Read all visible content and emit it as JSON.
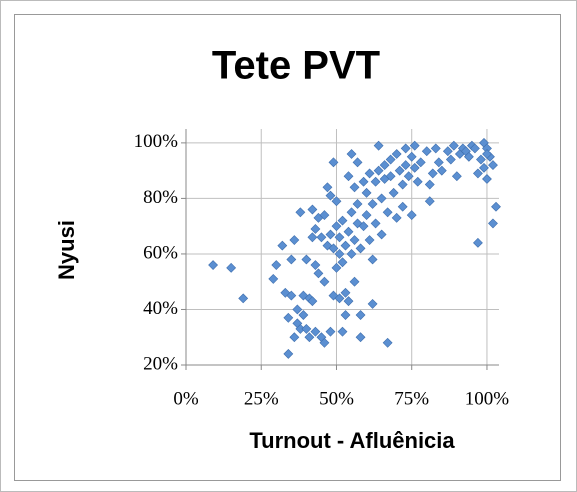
{
  "chart_data": {
    "type": "scatter",
    "title": "Tete PVT",
    "xlabel": "Turnout - Afluênicia",
    "ylabel": "Nyusi",
    "color": "#5b8fd1",
    "grid": true,
    "xlim": [
      0,
      104
    ],
    "ylim": [
      20,
      105
    ],
    "xticks": [
      {
        "value": 0,
        "label": "0%"
      },
      {
        "value": 25,
        "label": "25%"
      },
      {
        "value": 50,
        "label": "50%"
      },
      {
        "value": 75,
        "label": "75%"
      },
      {
        "value": 100,
        "label": "100%"
      }
    ],
    "yticks": [
      {
        "value": 20,
        "label": "20%"
      },
      {
        "value": 40,
        "label": "40%"
      },
      {
        "value": 60,
        "label": "60%"
      },
      {
        "value": 80,
        "label": "80%"
      },
      {
        "value": 100,
        "label": "100%"
      }
    ],
    "x": [
      9,
      15,
      19,
      29,
      30,
      32,
      33,
      34,
      34,
      35,
      35,
      36,
      36,
      37,
      37,
      38,
      38,
      39,
      39,
      40,
      40,
      41,
      41,
      42,
      42,
      42,
      43,
      43,
      43,
      44,
      44,
      45,
      45,
      46,
      46,
      46,
      47,
      47,
      48,
      48,
      48,
      49,
      49,
      49,
      50,
      50,
      50,
      51,
      51,
      51,
      52,
      52,
      52,
      53,
      53,
      53,
      54,
      54,
      54,
      55,
      55,
      55,
      56,
      56,
      56,
      57,
      57,
      57,
      58,
      58,
      58,
      59,
      59,
      60,
      60,
      61,
      61,
      62,
      62,
      62,
      63,
      63,
      64,
      64,
      65,
      65,
      66,
      66,
      67,
      67,
      68,
      68,
      69,
      70,
      70,
      71,
      72,
      72,
      73,
      73,
      74,
      75,
      75,
      76,
      76,
      77,
      78,
      80,
      81,
      81,
      82,
      83,
      84,
      85,
      87,
      88,
      89,
      90,
      91,
      92,
      93,
      94,
      95,
      96,
      97,
      97,
      98,
      99,
      99,
      100,
      100,
      101,
      102,
      102,
      103,
      100
    ],
    "values": [
      56,
      55,
      44,
      51,
      56,
      63,
      46,
      24,
      37,
      45,
      58,
      65,
      30,
      35,
      40,
      33,
      75,
      38,
      45,
      33,
      58,
      30,
      44,
      43,
      66,
      76,
      69,
      32,
      56,
      53,
      73,
      30,
      66,
      50,
      74,
      28,
      84,
      63,
      32,
      67,
      81,
      62,
      93,
      45,
      55,
      70,
      79,
      44,
      60,
      66,
      72,
      57,
      32,
      38,
      63,
      46,
      68,
      88,
      43,
      96,
      75,
      60,
      65,
      84,
      50,
      71,
      78,
      93,
      62,
      30,
      38,
      86,
      70,
      74,
      82,
      89,
      65,
      42,
      78,
      58,
      86,
      71,
      99,
      90,
      80,
      67,
      87,
      92,
      75,
      28,
      88,
      94,
      82,
      96,
      73,
      90,
      85,
      77,
      98,
      92,
      88,
      95,
      74,
      91,
      99,
      86,
      93,
      97,
      85,
      79,
      89,
      98,
      93,
      90,
      97,
      94,
      99,
      88,
      96,
      98,
      97,
      95,
      99,
      98,
      89,
      64,
      94,
      100,
      91,
      98,
      87,
      95,
      71,
      92,
      77,
      96
    ]
  }
}
